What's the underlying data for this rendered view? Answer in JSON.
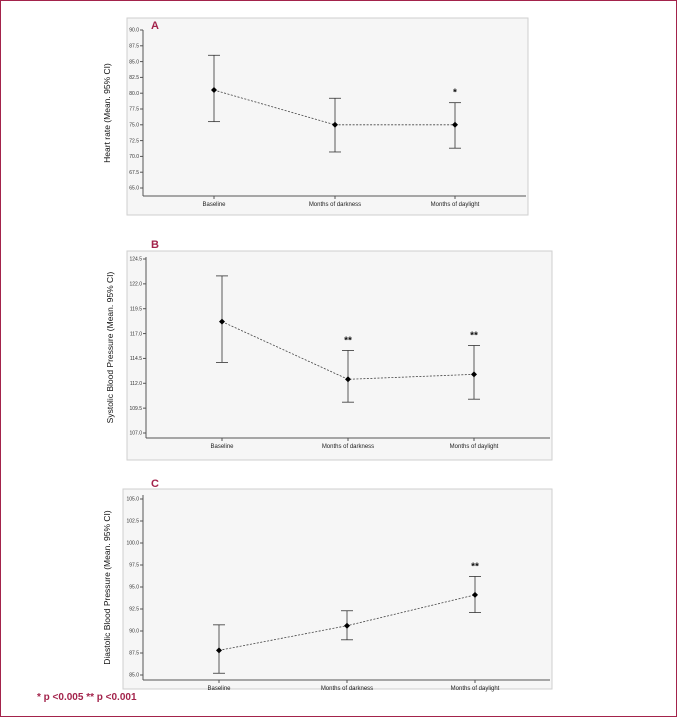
{
  "chart_data": [
    {
      "type": "line",
      "panel_label": "A",
      "ylabel": "Heart rate (Mean. 95% CI)",
      "categories": [
        "Baseline",
        "Months of darkness",
        "Months of daylight"
      ],
      "values": [
        80.5,
        75.0,
        75.0
      ],
      "ci_low": [
        75.5,
        70.7,
        71.3
      ],
      "ci_high": [
        86.0,
        79.2,
        78.5
      ],
      "significance": [
        "",
        "",
        "*"
      ],
      "ylim": [
        65.0,
        90.0
      ],
      "yticks": [
        "90.0",
        "87.5",
        "85.0",
        "82.5",
        "80.0",
        "77.5",
        "75.0",
        "72.5",
        "70.0",
        "67.5",
        "65.0"
      ]
    },
    {
      "type": "line",
      "panel_label": "B",
      "ylabel": "Systolic Blood Pressure (Mean. 95% CI)",
      "categories": [
        "Baseline",
        "Months of darkness",
        "Months of daylight"
      ],
      "values": [
        118.2,
        112.4,
        112.9
      ],
      "ci_low": [
        114.1,
        110.1,
        110.4
      ],
      "ci_high": [
        122.8,
        115.3,
        115.8
      ],
      "significance": [
        "",
        "**",
        "**"
      ],
      "ylim": [
        107.0,
        124.5
      ],
      "yticks": [
        "124.5",
        "122.0",
        "119.5",
        "117.0",
        "114.5",
        "112.0",
        "109.5",
        "107.0"
      ]
    },
    {
      "type": "line",
      "panel_label": "C",
      "ylabel": "Diastolic Blood Pressure (Mean. 95% CI)",
      "categories": [
        "Baseline",
        "Months of darkness",
        "Months of daylight"
      ],
      "values": [
        87.8,
        90.6,
        94.1
      ],
      "ci_low": [
        85.2,
        89.0,
        92.1
      ],
      "ci_high": [
        90.7,
        92.3,
        96.2
      ],
      "significance": [
        "",
        "",
        "**"
      ],
      "ylim": [
        85.0,
        105.0
      ],
      "yticks": [
        "105.0",
        "102.5",
        "100.0",
        "97.5",
        "95.0",
        "92.5",
        "90.0",
        "87.5",
        "85.0"
      ]
    }
  ],
  "footnote": "* p <0.005   ** p <0.001",
  "colors": {
    "accent": "#a3234b",
    "marker": "#000000",
    "line": "#444444"
  }
}
